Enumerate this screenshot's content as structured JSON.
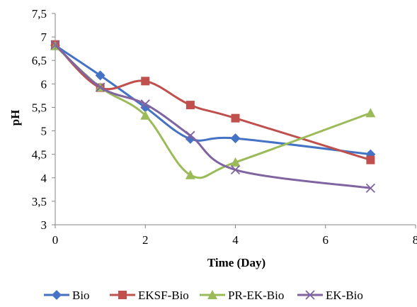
{
  "chart_data": {
    "type": "line",
    "xlabel": "Time (Day)",
    "ylabel": "pH",
    "xlim": [
      0,
      8
    ],
    "ylim": [
      3,
      7.5
    ],
    "x_ticks": [
      "0",
      "2",
      "4",
      "6",
      "8"
    ],
    "y_ticks": [
      "3",
      "3,5",
      "4",
      "4,5",
      "5",
      "5,5",
      "6",
      "6,5",
      "7",
      "7,5"
    ],
    "grid": false,
    "legend_position": "bottom",
    "x": [
      0,
      1,
      2,
      3,
      4,
      7
    ],
    "series": [
      {
        "name": "Bio",
        "color": "#4472C4",
        "marker": "diamond",
        "values": [
          6.82,
          6.18,
          5.5,
          4.83,
          4.84,
          4.5
        ]
      },
      {
        "name": "EKSF-Bio",
        "color": "#C0504D",
        "marker": "square",
        "values": [
          6.84,
          5.92,
          6.06,
          5.55,
          5.27,
          4.38
        ]
      },
      {
        "name": "PR-EK-Bio",
        "color": "#9BBB59",
        "marker": "triangle",
        "values": [
          6.81,
          5.93,
          5.33,
          4.06,
          4.33,
          5.38
        ]
      },
      {
        "name": "EK-Bio",
        "color": "#8064A2",
        "marker": "x",
        "values": [
          6.83,
          5.93,
          5.57,
          4.9,
          4.17,
          3.78
        ]
      }
    ]
  }
}
